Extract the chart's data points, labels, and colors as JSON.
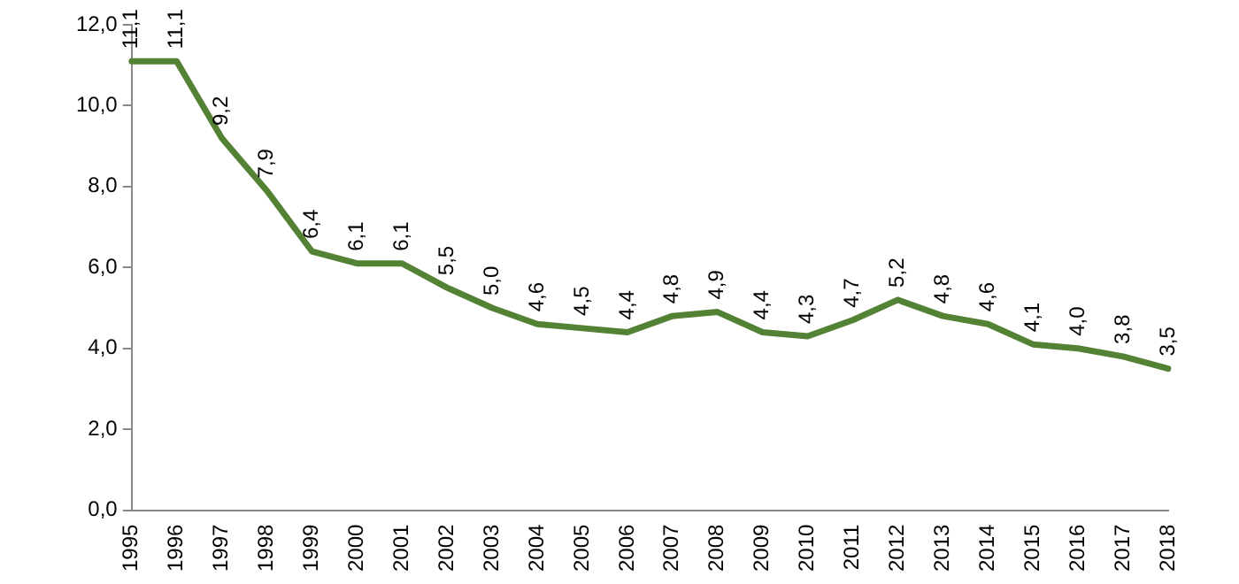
{
  "chart_data": {
    "type": "line",
    "categories": [
      "1995",
      "1996",
      "1997",
      "1998",
      "1999",
      "2000",
      "2001",
      "2002",
      "2003",
      "2004",
      "2005",
      "2006",
      "2007",
      "2008",
      "2009",
      "2010",
      "2011",
      "2012",
      "2013",
      "2014",
      "2015",
      "2016",
      "2017",
      "2018"
    ],
    "series": [
      {
        "color": "#548235",
        "values": [
          11.1,
          11.1,
          9.2,
          7.9,
          6.4,
          6.1,
          6.1,
          5.5,
          5.0,
          4.6,
          4.5,
          4.4,
          4.8,
          4.9,
          4.4,
          4.3,
          4.7,
          5.2,
          4.8,
          4.6,
          4.1,
          4.0,
          3.8,
          3.5
        ],
        "value_labels": [
          "11,1",
          "11,1",
          "9,2",
          "7,9",
          "6,4",
          "6,1",
          "6,1",
          "5,5",
          "5,0",
          "4,6",
          "4,5",
          "4,4",
          "4,8",
          "4,9",
          "4,4",
          "4,3",
          "4,7",
          "5,2",
          "4,8",
          "4,6",
          "4,1",
          "4,0",
          "3,8",
          "3,5"
        ]
      }
    ],
    "ylim": [
      0,
      12
    ],
    "yticks": [
      {
        "value": 0,
        "label": "0,0"
      },
      {
        "value": 2,
        "label": "2,0"
      },
      {
        "value": 4,
        "label": "4,0"
      },
      {
        "value": 6,
        "label": "6,0"
      },
      {
        "value": 8,
        "label": "8,0"
      },
      {
        "value": 10,
        "label": "10,0"
      },
      {
        "value": 12,
        "label": "12,0"
      }
    ],
    "grid": false,
    "legend": false,
    "marker": "none",
    "line_style": "solid"
  }
}
